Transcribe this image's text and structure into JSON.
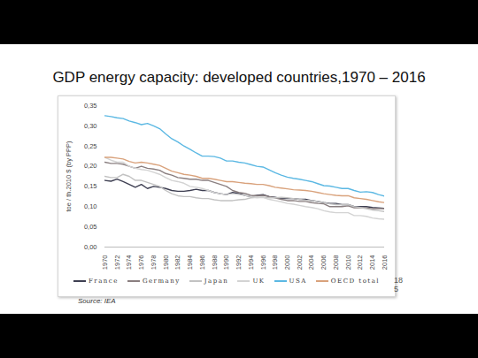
{
  "chart_data": {
    "type": "line",
    "title": "GDP energy capacity: developed countries,1970 – 2016",
    "y_label": "toe / th.2010 $ (by PPP)",
    "source": "Source: IEA",
    "page_number": "185",
    "x": [
      1970,
      1971,
      1972,
      1973,
      1974,
      1975,
      1976,
      1977,
      1978,
      1979,
      1980,
      1981,
      1982,
      1983,
      1984,
      1985,
      1986,
      1987,
      1988,
      1989,
      1990,
      1991,
      1992,
      1993,
      1994,
      1995,
      1996,
      1997,
      1998,
      1999,
      2000,
      2001,
      2002,
      2003,
      2004,
      2005,
      2006,
      2007,
      2008,
      2009,
      2010,
      2011,
      2012,
      2013,
      2014,
      2015,
      2016
    ],
    "xlim": [
      1970,
      2016
    ],
    "xticks": [
      1970,
      1972,
      1974,
      1976,
      1978,
      1980,
      1982,
      1984,
      1986,
      1988,
      1990,
      1992,
      1994,
      1996,
      1998,
      2000,
      2002,
      2004,
      2006,
      2008,
      2010,
      2012,
      2014,
      2016
    ],
    "ylim": [
      0,
      0.35
    ],
    "yticks": [
      {
        "value": 0,
        "label": "0,00"
      },
      {
        "value": 0.05,
        "label": "0,05"
      },
      {
        "value": 0.1,
        "label": "0,10"
      },
      {
        "value": 0.15,
        "label": "0,15"
      },
      {
        "value": 0.2,
        "label": "0,20"
      },
      {
        "value": 0.25,
        "label": "0,25"
      },
      {
        "value": 0.3,
        "label": "0,30"
      },
      {
        "value": 0.35,
        "label": "0,35"
      }
    ],
    "grid": false,
    "legend": "bottom",
    "series": [
      {
        "name": "France",
        "color": "#3e3f52",
        "values": [
          0.165,
          0.163,
          0.168,
          0.162,
          0.155,
          0.148,
          0.155,
          0.145,
          0.15,
          0.148,
          0.145,
          0.14,
          0.138,
          0.138,
          0.14,
          0.143,
          0.14,
          0.14,
          0.135,
          0.132,
          0.13,
          0.135,
          0.133,
          0.128,
          0.125,
          0.128,
          0.13,
          0.125,
          0.123,
          0.12,
          0.12,
          0.12,
          0.118,
          0.118,
          0.115,
          0.113,
          0.11,
          0.108,
          0.108,
          0.105,
          0.105,
          0.1,
          0.1,
          0.1,
          0.098,
          0.097,
          0.096
        ]
      },
      {
        "name": "Germany",
        "color": "#8a7f80",
        "values": [
          0.21,
          0.207,
          0.207,
          0.205,
          0.2,
          0.195,
          0.2,
          0.195,
          0.193,
          0.19,
          0.182,
          0.178,
          0.172,
          0.17,
          0.168,
          0.168,
          0.165,
          0.165,
          0.16,
          0.155,
          0.15,
          0.14,
          0.135,
          0.133,
          0.128,
          0.127,
          0.128,
          0.125,
          0.122,
          0.118,
          0.115,
          0.115,
          0.113,
          0.113,
          0.11,
          0.108,
          0.107,
          0.1,
          0.1,
          0.1,
          0.102,
          0.097,
          0.097,
          0.097,
          0.095,
          0.095,
          0.095
        ]
      },
      {
        "name": "Japan",
        "color": "#c2c2c2",
        "values": [
          0.175,
          0.172,
          0.172,
          0.18,
          0.175,
          0.165,
          0.165,
          0.16,
          0.155,
          0.15,
          0.14,
          0.132,
          0.127,
          0.125,
          0.125,
          0.122,
          0.12,
          0.12,
          0.117,
          0.115,
          0.115,
          0.115,
          0.117,
          0.118,
          0.122,
          0.123,
          0.123,
          0.122,
          0.122,
          0.123,
          0.122,
          0.12,
          0.118,
          0.116,
          0.115,
          0.113,
          0.11,
          0.107,
          0.105,
          0.105,
          0.105,
          0.1,
          0.098,
          0.095,
          0.092,
          0.09,
          0.088
        ]
      },
      {
        "name": "UK",
        "color": "#d3d3d3",
        "values": [
          0.222,
          0.215,
          0.21,
          0.21,
          0.2,
          0.195,
          0.192,
          0.19,
          0.185,
          0.18,
          0.172,
          0.165,
          0.162,
          0.158,
          0.15,
          0.148,
          0.145,
          0.14,
          0.135,
          0.132,
          0.13,
          0.132,
          0.13,
          0.128,
          0.125,
          0.122,
          0.123,
          0.118,
          0.115,
          0.112,
          0.108,
          0.106,
          0.103,
          0.1,
          0.098,
          0.095,
          0.09,
          0.087,
          0.085,
          0.085,
          0.085,
          0.078,
          0.078,
          0.076,
          0.072,
          0.07,
          0.069
        ]
      },
      {
        "name": "USA",
        "color": "#5bb8e3",
        "values": [
          0.325,
          0.323,
          0.32,
          0.318,
          0.312,
          0.308,
          0.303,
          0.306,
          0.3,
          0.293,
          0.28,
          0.268,
          0.26,
          0.25,
          0.242,
          0.233,
          0.225,
          0.225,
          0.224,
          0.22,
          0.213,
          0.213,
          0.21,
          0.208,
          0.204,
          0.2,
          0.198,
          0.191,
          0.184,
          0.178,
          0.173,
          0.17,
          0.168,
          0.165,
          0.162,
          0.157,
          0.152,
          0.151,
          0.148,
          0.145,
          0.145,
          0.14,
          0.136,
          0.137,
          0.135,
          0.13,
          0.126
        ]
      },
      {
        "name": "OECD total",
        "color": "#d9a27c",
        "values": [
          0.222,
          0.222,
          0.22,
          0.218,
          0.212,
          0.208,
          0.21,
          0.208,
          0.205,
          0.202,
          0.195,
          0.188,
          0.184,
          0.18,
          0.178,
          0.175,
          0.17,
          0.17,
          0.168,
          0.165,
          0.162,
          0.162,
          0.16,
          0.158,
          0.157,
          0.155,
          0.155,
          0.152,
          0.148,
          0.146,
          0.144,
          0.142,
          0.141,
          0.14,
          0.138,
          0.135,
          0.132,
          0.13,
          0.128,
          0.127,
          0.127,
          0.122,
          0.12,
          0.118,
          0.115,
          0.112,
          0.11
        ]
      }
    ]
  }
}
